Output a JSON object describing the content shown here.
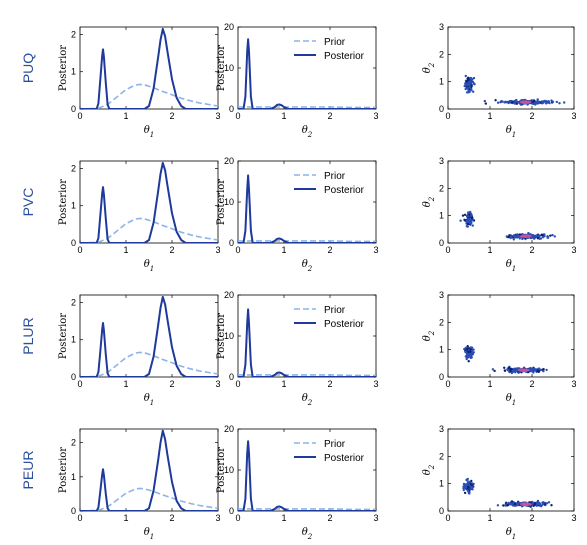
{
  "colors": {
    "prior": "#8cb4e8",
    "posterior": "#1e3a9a",
    "scatter_main": "#2a4fb5",
    "scatter_dark": "#0f1f6e",
    "scatter_highlight": "#e8549a",
    "row_label": "#2a4f9e"
  },
  "chart_data": [
    {
      "row_label": "PUQ",
      "theta1": {
        "type": "line",
        "xlabel": "θ1",
        "ylabel": "Posterior",
        "xlim": [
          0,
          3
        ],
        "ylim": [
          0,
          2.2
        ],
        "xticks": [
          0,
          1,
          2,
          3
        ],
        "yticks": [
          0,
          1,
          2
        ],
        "legend": false,
        "series": [
          {
            "style": "dashed",
            "x": [
              0,
              0.4,
              0.6,
              0.8,
              1.0,
              1.2,
              1.3,
              1.4,
              1.6,
              1.8,
              2.0,
              2.2,
              2.4,
              2.6,
              2.8,
              3.0
            ],
            "y": [
              0,
              0.02,
              0.12,
              0.32,
              0.52,
              0.64,
              0.66,
              0.65,
              0.57,
              0.47,
              0.38,
              0.29,
              0.22,
              0.16,
              0.12,
              0.08
            ]
          },
          {
            "style": "solid",
            "x": [
              0,
              0.36,
              0.4,
              0.44,
              0.48,
              0.5,
              0.52,
              0.56,
              0.6,
              0.64,
              1.4,
              1.5,
              1.6,
              1.7,
              1.75,
              1.8,
              1.85,
              1.9,
              2.0,
              2.1,
              2.2,
              2.3,
              3.0
            ],
            "y": [
              0,
              0,
              0.15,
              0.75,
              1.4,
              1.6,
              1.4,
              0.7,
              0.12,
              0,
              0,
              0.08,
              0.55,
              1.4,
              1.85,
              2.15,
              1.95,
              1.55,
              0.8,
              0.3,
              0.08,
              0,
              0
            ]
          }
        ]
      },
      "theta2": {
        "type": "line",
        "xlabel": "θ2",
        "ylabel": "Posterior",
        "xlim": [
          0,
          3
        ],
        "ylim": [
          0,
          20
        ],
        "xticks": [
          0,
          1,
          2,
          3
        ],
        "yticks": [
          0,
          10,
          20
        ],
        "legend": true,
        "legend_entries": [
          "Prior",
          "Posterior"
        ],
        "series": [
          {
            "style": "dashed",
            "x": [
              0,
              0.5,
              1.0,
              1.5,
              2.0,
              2.5,
              3.0
            ],
            "y": [
              0.5,
              0.5,
              0.5,
              0.5,
              0.5,
              0.4,
              0.4
            ]
          },
          {
            "style": "solid",
            "x": [
              0,
              0.12,
              0.16,
              0.2,
              0.22,
              0.24,
              0.28,
              0.32,
              0.7,
              0.8,
              0.85,
              0.9,
              0.95,
              1.0,
              1.1,
              3.0
            ],
            "y": [
              0,
              0,
              3,
              14,
              17,
              14,
              3,
              0,
              0,
              0.5,
              1.0,
              1.1,
              0.9,
              0.5,
              0,
              0
            ]
          }
        ]
      },
      "joint": {
        "type": "scatter",
        "xlabel": "θ1",
        "ylabel": "θ2",
        "xlim": [
          0,
          3
        ],
        "ylim": [
          0,
          3
        ],
        "xticks": [
          0,
          1,
          2,
          3
        ],
        "yticks": [
          0,
          1,
          2,
          3
        ],
        "clusters": [
          {
            "cx": 0.5,
            "cy": 0.9,
            "sx": 0.05,
            "sy": 0.12,
            "n": 110
          },
          {
            "cx": 1.85,
            "cy": 0.25,
            "sx": 0.28,
            "sy": 0.035,
            "n": 200
          }
        ],
        "highlight": [
          1.85,
          0.25
        ]
      }
    },
    {
      "row_label": "PVC",
      "theta1": {
        "type": "line",
        "xlabel": "θ1",
        "ylabel": "Posterior",
        "xlim": [
          0,
          3
        ],
        "ylim": [
          0,
          2.2
        ],
        "xticks": [
          0,
          1,
          2,
          3
        ],
        "yticks": [
          0,
          1,
          2
        ],
        "legend": false,
        "series": [
          {
            "style": "dashed",
            "x": [
              0,
              0.4,
              0.6,
              0.8,
              1.0,
              1.2,
              1.3,
              1.4,
              1.6,
              1.8,
              2.0,
              2.2,
              2.4,
              2.6,
              2.8,
              3.0
            ],
            "y": [
              0,
              0.02,
              0.12,
              0.32,
              0.52,
              0.64,
              0.66,
              0.65,
              0.57,
              0.47,
              0.38,
              0.29,
              0.22,
              0.16,
              0.12,
              0.08
            ]
          },
          {
            "style": "solid",
            "x": [
              0,
              0.36,
              0.4,
              0.44,
              0.48,
              0.5,
              0.52,
              0.56,
              0.6,
              0.64,
              1.4,
              1.5,
              1.6,
              1.7,
              1.75,
              1.8,
              1.85,
              1.9,
              2.0,
              2.1,
              2.2,
              2.3,
              3.0
            ],
            "y": [
              0,
              0,
              0.13,
              0.7,
              1.3,
              1.5,
              1.3,
              0.65,
              0.1,
              0,
              0,
              0.08,
              0.55,
              1.4,
              1.85,
              2.15,
              1.95,
              1.55,
              0.8,
              0.3,
              0.08,
              0,
              0
            ]
          }
        ]
      },
      "theta2": {
        "type": "line",
        "xlabel": "θ2",
        "ylabel": "Posterior",
        "xlim": [
          0,
          3
        ],
        "ylim": [
          0,
          20
        ],
        "xticks": [
          0,
          1,
          2,
          3
        ],
        "yticks": [
          0,
          10,
          20
        ],
        "legend": true,
        "legend_entries": [
          "Prior",
          "Posterior"
        ],
        "series": [
          {
            "style": "dashed",
            "x": [
              0,
              0.5,
              1.0,
              1.5,
              2.0,
              2.5,
              3.0
            ],
            "y": [
              0.5,
              0.5,
              0.5,
              0.5,
              0.5,
              0.4,
              0.4
            ]
          },
          {
            "style": "solid",
            "x": [
              0,
              0.12,
              0.16,
              0.2,
              0.22,
              0.24,
              0.28,
              0.32,
              0.7,
              0.8,
              0.85,
              0.9,
              0.95,
              1.0,
              1.1,
              3.0
            ],
            "y": [
              0,
              0,
              3,
              13,
              16.5,
              13,
              3,
              0,
              0,
              0.5,
              1.0,
              1.1,
              0.9,
              0.5,
              0,
              0
            ]
          }
        ]
      },
      "joint": {
        "type": "scatter",
        "xlabel": "θ1",
        "ylabel": "θ2",
        "xlim": [
          0,
          3
        ],
        "ylim": [
          0,
          3
        ],
        "xticks": [
          0,
          1,
          2,
          3
        ],
        "yticks": [
          0,
          1,
          2,
          3
        ],
        "clusters": [
          {
            "cx": 0.5,
            "cy": 0.9,
            "sx": 0.05,
            "sy": 0.1,
            "n": 110
          },
          {
            "cx": 1.85,
            "cy": 0.25,
            "sx": 0.25,
            "sy": 0.035,
            "n": 200
          }
        ],
        "highlight": [
          1.85,
          0.25
        ]
      }
    },
    {
      "row_label": "PLUR",
      "theta1": {
        "type": "line",
        "xlabel": "θ1",
        "ylabel": "Posterior",
        "xlim": [
          0,
          3
        ],
        "ylim": [
          0,
          2.2
        ],
        "xticks": [
          0,
          1,
          2,
          3
        ],
        "yticks": [
          0,
          1,
          2
        ],
        "legend": false,
        "series": [
          {
            "style": "dashed",
            "x": [
              0,
              0.4,
              0.6,
              0.8,
              1.0,
              1.2,
              1.3,
              1.4,
              1.6,
              1.8,
              2.0,
              2.2,
              2.4,
              2.6,
              2.8,
              3.0
            ],
            "y": [
              0,
              0.02,
              0.12,
              0.32,
              0.52,
              0.64,
              0.66,
              0.65,
              0.57,
              0.47,
              0.38,
              0.29,
              0.22,
              0.16,
              0.12,
              0.08
            ]
          },
          {
            "style": "solid",
            "x": [
              0,
              0.36,
              0.4,
              0.44,
              0.48,
              0.5,
              0.52,
              0.56,
              0.6,
              0.64,
              1.4,
              1.5,
              1.6,
              1.7,
              1.75,
              1.8,
              1.85,
              1.9,
              2.0,
              2.1,
              2.2,
              2.3,
              3.0
            ],
            "y": [
              0,
              0,
              0.13,
              0.65,
              1.25,
              1.45,
              1.25,
              0.6,
              0.1,
              0,
              0,
              0.08,
              0.55,
              1.4,
              1.85,
              2.15,
              1.95,
              1.55,
              0.8,
              0.3,
              0.08,
              0,
              0
            ]
          }
        ]
      },
      "theta2": {
        "type": "line",
        "xlabel": "θ2",
        "ylabel": "Posterior",
        "xlim": [
          0,
          3
        ],
        "ylim": [
          0,
          20
        ],
        "xticks": [
          0,
          1,
          2,
          3
        ],
        "yticks": [
          0,
          10,
          20
        ],
        "legend": true,
        "legend_entries": [
          "Prior",
          "Posterior"
        ],
        "series": [
          {
            "style": "dashed",
            "x": [
              0,
              0.5,
              1.0,
              1.5,
              2.0,
              2.5,
              3.0
            ],
            "y": [
              0.5,
              0.5,
              0.5,
              0.5,
              0.5,
              0.4,
              0.4
            ]
          },
          {
            "style": "solid",
            "x": [
              0,
              0.12,
              0.16,
              0.2,
              0.22,
              0.24,
              0.28,
              0.32,
              0.7,
              0.8,
              0.85,
              0.9,
              0.95,
              1.0,
              1.1,
              3.0
            ],
            "y": [
              0,
              0,
              3,
              13,
              16.5,
              13,
              3,
              0,
              0,
              0.5,
              1.0,
              1.1,
              0.9,
              0.5,
              0,
              0
            ]
          }
        ]
      },
      "joint": {
        "type": "scatter",
        "xlabel": "θ1",
        "ylabel": "θ2",
        "xlim": [
          0,
          3
        ],
        "ylim": [
          0,
          3
        ],
        "xticks": [
          0,
          1,
          2,
          3
        ],
        "yticks": [
          0,
          1,
          2,
          3
        ],
        "clusters": [
          {
            "cx": 0.5,
            "cy": 0.9,
            "sx": 0.05,
            "sy": 0.1,
            "n": 110
          },
          {
            "cx": 1.8,
            "cy": 0.25,
            "sx": 0.22,
            "sy": 0.035,
            "n": 200
          }
        ],
        "highlight": [
          1.8,
          0.25
        ]
      }
    },
    {
      "row_label": "PEUR",
      "theta1": {
        "type": "line",
        "xlabel": "θ1",
        "ylabel": "Posterior",
        "xlim": [
          0,
          3
        ],
        "ylim": [
          0,
          2.4
        ],
        "xticks": [
          0,
          1,
          2,
          3
        ],
        "yticks": [
          0,
          1,
          2
        ],
        "legend": false,
        "series": [
          {
            "style": "dashed",
            "x": [
              0,
              0.4,
              0.6,
              0.8,
              1.0,
              1.2,
              1.3,
              1.4,
              1.6,
              1.8,
              2.0,
              2.2,
              2.4,
              2.6,
              2.8,
              3.0
            ],
            "y": [
              0,
              0.02,
              0.12,
              0.32,
              0.52,
              0.64,
              0.66,
              0.65,
              0.57,
              0.47,
              0.38,
              0.29,
              0.22,
              0.16,
              0.12,
              0.08
            ]
          },
          {
            "style": "solid",
            "x": [
              0,
              0.36,
              0.4,
              0.44,
              0.48,
              0.5,
              0.52,
              0.56,
              0.6,
              0.64,
              1.4,
              1.5,
              1.6,
              1.7,
              1.75,
              1.8,
              1.85,
              1.9,
              2.0,
              2.1,
              2.2,
              2.3,
              3.0
            ],
            "y": [
              0,
              0,
              0.1,
              0.55,
              1.05,
              1.22,
              1.05,
              0.5,
              0.08,
              0,
              0,
              0.08,
              0.6,
              1.5,
              2.0,
              2.35,
              2.1,
              1.65,
              0.85,
              0.3,
              0.08,
              0,
              0
            ]
          }
        ]
      },
      "theta2": {
        "type": "line",
        "xlabel": "θ2",
        "ylabel": "Posterior",
        "xlim": [
          0,
          3
        ],
        "ylim": [
          0,
          20
        ],
        "xticks": [
          0,
          1,
          2,
          3
        ],
        "yticks": [
          0,
          10,
          20
        ],
        "legend": true,
        "legend_entries": [
          "Prior",
          "Posterior"
        ],
        "series": [
          {
            "style": "dashed",
            "x": [
              0,
              0.5,
              1.0,
              1.5,
              2.0,
              2.5,
              3.0
            ],
            "y": [
              0.5,
              0.5,
              0.5,
              0.5,
              0.5,
              0.4,
              0.4
            ]
          },
          {
            "style": "solid",
            "x": [
              0,
              0.12,
              0.16,
              0.2,
              0.22,
              0.24,
              0.28,
              0.32,
              0.7,
              0.8,
              0.85,
              0.9,
              0.95,
              1.0,
              1.1,
              3.0
            ],
            "y": [
              0,
              0,
              3,
              14,
              17,
              14,
              3,
              0,
              0,
              0.5,
              1.0,
              1.1,
              0.9,
              0.5,
              0,
              0
            ]
          }
        ]
      },
      "joint": {
        "type": "scatter",
        "xlabel": "θ1",
        "ylabel": "θ2",
        "xlim": [
          0,
          3
        ],
        "ylim": [
          0,
          3
        ],
        "xticks": [
          0,
          1,
          2,
          3
        ],
        "yticks": [
          0,
          1,
          2,
          3
        ],
        "clusters": [
          {
            "cx": 0.5,
            "cy": 0.9,
            "sx": 0.05,
            "sy": 0.1,
            "n": 110
          },
          {
            "cx": 1.85,
            "cy": 0.25,
            "sx": 0.22,
            "sy": 0.035,
            "n": 200
          }
        ],
        "highlight": [
          1.85,
          0.25
        ]
      }
    }
  ]
}
